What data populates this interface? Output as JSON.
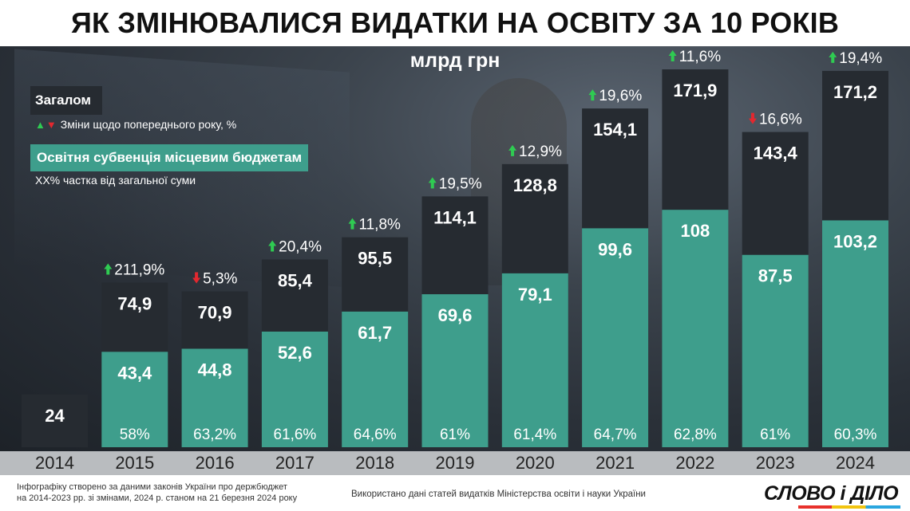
{
  "title": "ЯК ЗМІНЮВАЛИСЯ ВИДАТКИ НА ОСВІТУ ЗА 10 РОКІВ",
  "unit": "млрд грн",
  "legend": {
    "total": "Загалом",
    "change": "Зміни щодо попереднього року, %",
    "subvention": "Освітня субвенція місцевим бюджетам",
    "share": "XX% частка від загальної суми"
  },
  "colors": {
    "total": "#262b31",
    "subvention": "#3e9e8c",
    "up": "#2fcb52",
    "down": "#e3282f"
  },
  "chart_data": {
    "type": "bar",
    "categories": [
      "2014",
      "2015",
      "2016",
      "2017",
      "2018",
      "2019",
      "2020",
      "2021",
      "2022",
      "2023",
      "2024"
    ],
    "series": [
      {
        "name": "Загалом",
        "values": [
          24,
          74.9,
          70.9,
          85.4,
          95.5,
          114.1,
          128.8,
          154.1,
          171.9,
          143.4,
          171.2
        ],
        "labels": [
          "24",
          "74,9",
          "70,9",
          "85,4",
          "95,5",
          "114,1",
          "128,8",
          "154,1",
          "171,9",
          "143,4",
          "171,2"
        ]
      },
      {
        "name": "Освітня субвенція місцевим бюджетам",
        "values": [
          null,
          43.4,
          44.8,
          52.6,
          61.7,
          69.6,
          79.1,
          99.6,
          108,
          87.5,
          103.2
        ],
        "labels": [
          "",
          "43,4",
          "44,8",
          "52,6",
          "61,7",
          "69,6",
          "79,1",
          "99,6",
          "108",
          "87,5",
          "103,2"
        ]
      }
    ],
    "change": {
      "values": [
        null,
        211.9,
        5.3,
        20.4,
        11.8,
        19.5,
        12.9,
        19.6,
        11.6,
        16.6,
        19.4
      ],
      "labels": [
        "",
        "211,9%",
        "5,3%",
        "20,4%",
        "11,8%",
        "19,5%",
        "12,9%",
        "19,6%",
        "11,6%",
        "16,6%",
        "19,4%"
      ],
      "direction": [
        "",
        "up",
        "down",
        "up",
        "up",
        "up",
        "up",
        "up",
        "up",
        "down",
        "up"
      ]
    },
    "share": {
      "values": [
        null,
        58,
        63.2,
        61.6,
        64.6,
        61,
        61.4,
        64.7,
        62.8,
        61,
        60.3
      ],
      "labels": [
        "",
        "58%",
        "63,2%",
        "61,6%",
        "64,6%",
        "61%",
        "61,4%",
        "64,7%",
        "62,8%",
        "61%",
        "60,3%"
      ]
    }
  },
  "footer": {
    "left_line1": "Інфографіку створено за даними законів України про держбюджет",
    "left_line2": "на 2014-2023 рр. зі змінами, 2024 р. станом на 21 березня 2024 року",
    "middle": "Використано дані статей видатків Міністерства освіти і науки України",
    "logo": "СЛОВО і ДІЛО"
  }
}
